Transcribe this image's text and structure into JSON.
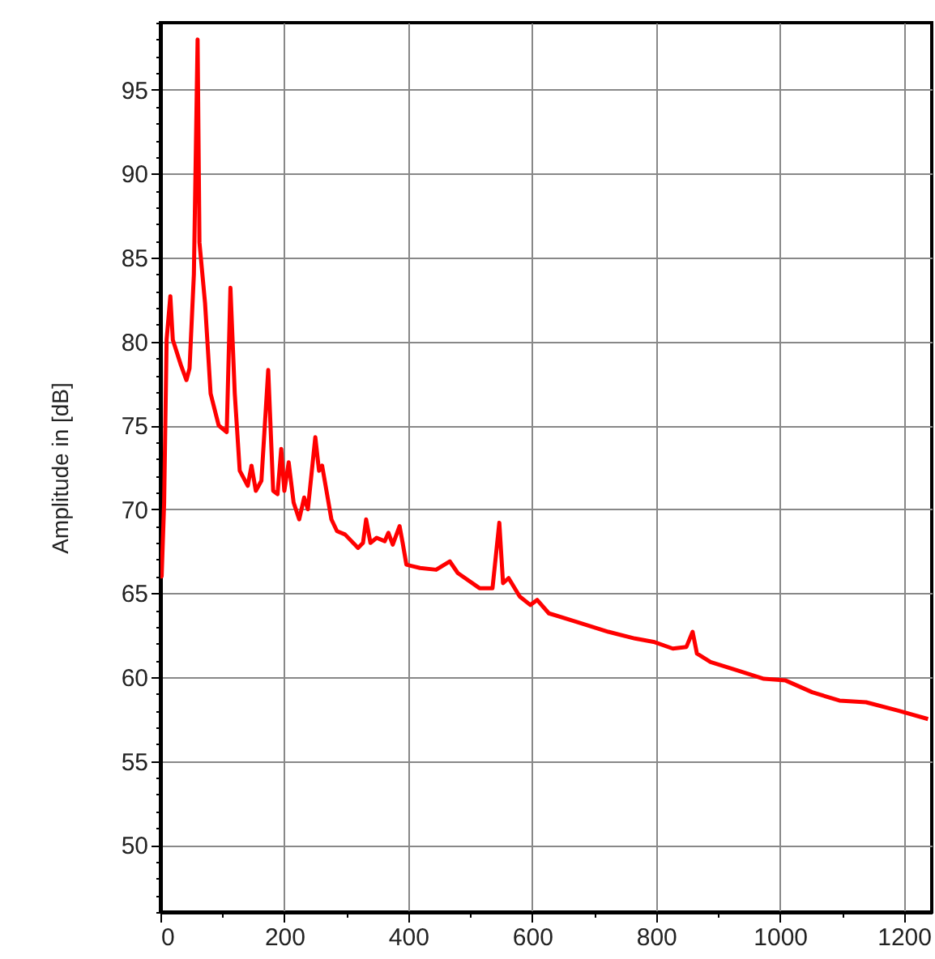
{
  "chart_data": {
    "type": "line",
    "ylabel": "Amplitude in [dB]",
    "x": [
      0,
      2,
      6,
      10,
      16,
      20,
      33,
      42,
      47,
      54,
      60,
      63,
      72,
      81,
      94,
      107,
      113,
      120,
      128,
      141,
      147,
      154,
      163,
      174,
      182,
      189,
      195,
      200,
      207,
      215,
      224,
      232,
      238,
      250,
      256,
      261,
      276,
      285,
      298,
      319,
      327,
      332,
      339,
      349,
      362,
      368,
      375,
      386,
      391,
      397,
      419,
      445,
      467,
      480,
      515,
      536,
      547,
      553,
      562,
      580,
      597,
      608,
      627,
      671,
      723,
      766,
      796,
      827,
      849,
      859,
      866,
      888,
      931,
      974,
      1009,
      1052,
      1096,
      1139,
      1191,
      1239
    ],
    "series": [
      {
        "color": "#ff0000",
        "values": [
          66,
          66,
          70.4,
          80.1,
          82.7,
          80.1,
          78.6,
          77.7,
          78.4,
          84,
          98.0,
          85.9,
          82.3,
          76.9,
          75.0,
          74.6,
          83.2,
          76.9,
          72.3,
          71.4,
          72.6,
          71.1,
          71.7,
          78.3,
          71.1,
          70.9,
          73.6,
          71.1,
          72.8,
          70.4,
          69.4,
          70.7,
          70.0,
          74.3,
          72.3,
          72.6,
          69.4,
          68.7,
          68.5,
          67.7,
          68.0,
          69.4,
          68.0,
          68.3,
          68.1,
          68.6,
          67.9,
          69.0,
          68.0,
          66.7,
          66.5,
          66.4,
          66.9,
          66.2,
          65.3,
          65.3,
          69.2,
          65.6,
          65.9,
          64.8,
          64.3,
          64.6,
          63.8,
          63.3,
          62.7,
          62.3,
          62.1,
          61.7,
          61.8,
          62.7,
          61.4,
          60.9,
          60.4,
          59.9,
          59.8,
          59.1,
          58.6,
          58.5,
          58.0,
          57.5
        ]
      }
    ],
    "xlim": [
      0,
      1245
    ],
    "ylim": [
      46,
      99
    ],
    "xticks": [
      0,
      {
        "value": 100,
        "label": null
      },
      200,
      {
        "value": 300,
        "label": null
      },
      400,
      {
        "value": 500,
        "label": null
      },
      600,
      {
        "value": 700,
        "label": null
      },
      800,
      {
        "value": 900,
        "label": null
      },
      1000,
      {
        "value": 1100,
        "label": null
      },
      1200
    ],
    "yticks": [
      {
        "value": 46,
        "label": null
      },
      {
        "value": 47,
        "label": null
      },
      {
        "value": 48,
        "label": null
      },
      {
        "value": 49,
        "label": null
      },
      50,
      {
        "value": 51,
        "label": null
      },
      {
        "value": 52,
        "label": null
      },
      {
        "value": 53,
        "label": null
      },
      {
        "value": 54,
        "label": null
      },
      55,
      {
        "value": 56,
        "label": null
      },
      {
        "value": 57,
        "label": null
      },
      {
        "value": 58,
        "label": null
      },
      {
        "value": 59,
        "label": null
      },
      60,
      {
        "value": 61,
        "label": null
      },
      {
        "value": 62,
        "label": null
      },
      {
        "value": 63,
        "label": null
      },
      {
        "value": 64,
        "label": null
      },
      65,
      {
        "value": 66,
        "label": null
      },
      {
        "value": 67,
        "label": null
      },
      {
        "value": 68,
        "label": null
      },
      {
        "value": 69,
        "label": null
      },
      70,
      {
        "value": 71,
        "label": null
      },
      {
        "value": 72,
        "label": null
      },
      {
        "value": 73,
        "label": null
      },
      {
        "value": 74,
        "label": null
      },
      75,
      {
        "value": 76,
        "label": null
      },
      {
        "value": 77,
        "label": null
      },
      {
        "value": 78,
        "label": null
      },
      {
        "value": 79,
        "label": null
      },
      80,
      {
        "value": 81,
        "label": null
      },
      {
        "value": 82,
        "label": null
      },
      {
        "value": 83,
        "label": null
      },
      {
        "value": 84,
        "label": null
      },
      85,
      {
        "value": 86,
        "label": null
      },
      {
        "value": 87,
        "label": null
      },
      {
        "value": 88,
        "label": null
      },
      {
        "value": 89,
        "label": null
      },
      90,
      {
        "value": 91,
        "label": null
      },
      {
        "value": 92,
        "label": null
      },
      {
        "value": 93,
        "label": null
      },
      {
        "value": 94,
        "label": null
      },
      95,
      {
        "value": 96,
        "label": null
      },
      {
        "value": 97,
        "label": null
      },
      {
        "value": 98,
        "label": null
      },
      {
        "value": 99,
        "label": null
      }
    ],
    "grid": true,
    "marker": "none",
    "line_style": "solid"
  }
}
